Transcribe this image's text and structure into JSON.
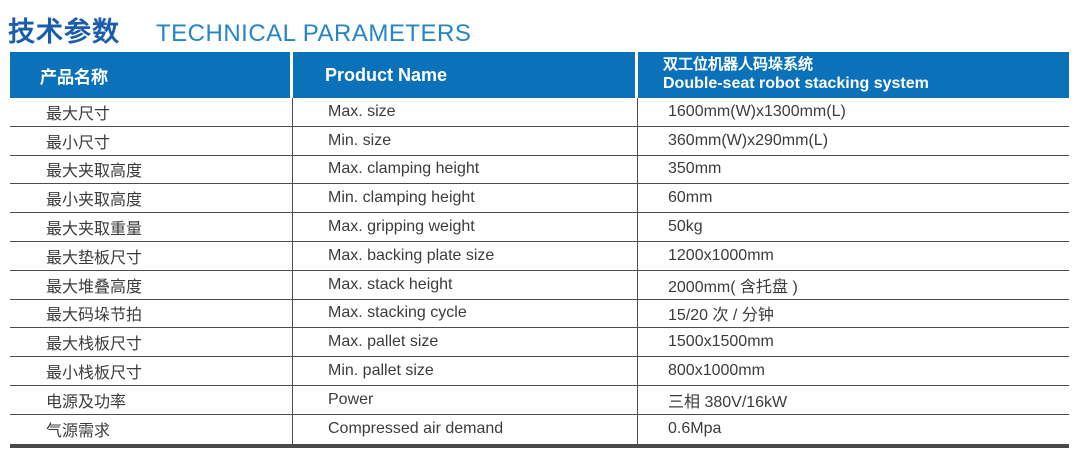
{
  "page_title": {
    "zh": "技术参数",
    "en": "TECHNICAL PARAMETERS"
  },
  "table": {
    "header": {
      "name_zh": "产品名称",
      "name_en": "Product Name",
      "product_zh": "双工位机器人码垛系统",
      "product_en": "Double-seat robot stacking system"
    },
    "rows": [
      {
        "name_zh": "最大尺寸",
        "name_en": "Max. size",
        "value": "1600mm(W)x1300mm(L)"
      },
      {
        "name_zh": "最小尺寸",
        "name_en": "Min. size",
        "value": "360mm(W)x290mm(L)"
      },
      {
        "name_zh": "最大夹取高度",
        "name_en": "Max. clamping height",
        "value": "350mm"
      },
      {
        "name_zh": "最小夹取高度",
        "name_en": "Min. clamping height",
        "value": "60mm"
      },
      {
        "name_zh": "最大夹取重量",
        "name_en": "Max. gripping weight",
        "value": "50kg"
      },
      {
        "name_zh": "最大垫板尺寸",
        "name_en": "Max. backing plate size",
        "value": "1200x1000mm"
      },
      {
        "name_zh": "最大堆叠高度",
        "name_en": "Max. stack height",
        "value": "2000mm( 含托盘 )"
      },
      {
        "name_zh": "最大码垛节拍",
        "name_en": "Max. stacking cycle",
        "value": "15/20 次 / 分钟"
      },
      {
        "name_zh": "最大栈板尺寸",
        "name_en": "Max. pallet size",
        "value": "1500x1500mm"
      },
      {
        "name_zh": "最小栈板尺寸",
        "name_en": "Min. pallet size",
        "value": "800x1000mm"
      },
      {
        "name_zh": "电源及功率",
        "name_en": "Power",
        "value": "三相 380V/16kW"
      },
      {
        "name_zh": "气源需求",
        "name_en": "Compressed air demand",
        "value": "0.6Mpa"
      }
    ]
  },
  "colors": {
    "header_bg": "#0b72b9",
    "title_zh": "#1b5dab",
    "title_en": "#2585c5",
    "body_text": "#3c3c3c",
    "grid_line": "#4d4d4d"
  }
}
